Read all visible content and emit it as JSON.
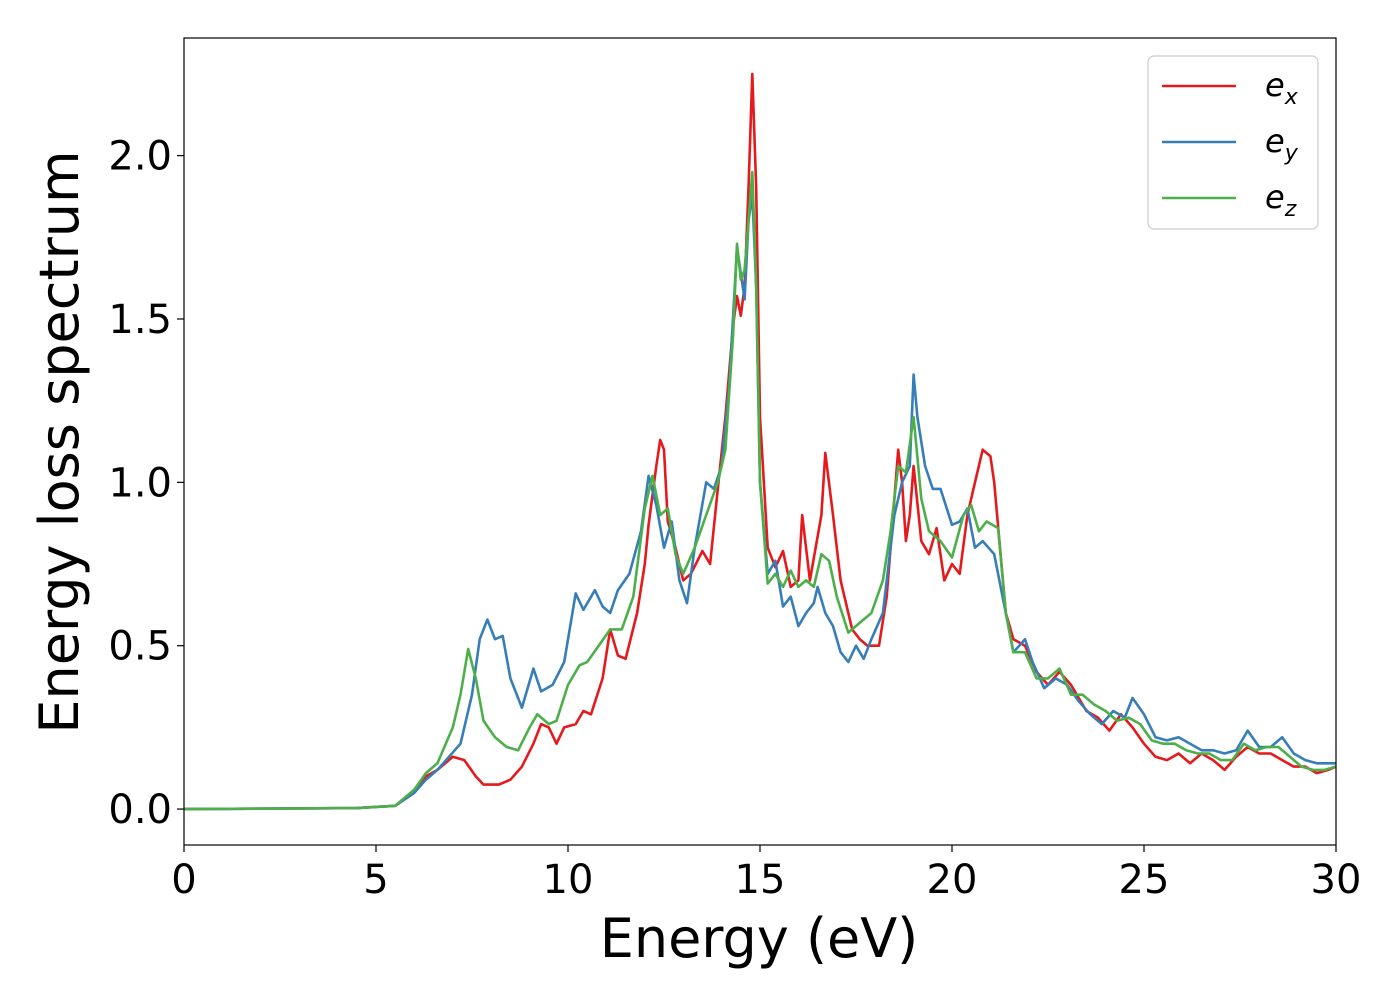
{
  "chart_data": {
    "type": "line",
    "xlabel": "Energy (eV)",
    "ylabel": "Energy loss spectrum",
    "xlim": [
      0,
      30
    ],
    "ylim": [
      -0.11,
      2.36
    ],
    "x_ticks": [
      0,
      5,
      10,
      15,
      20,
      25,
      30
    ],
    "y_ticks": [
      0.0,
      0.5,
      1.0,
      1.5,
      2.0
    ],
    "x_tick_labels": [
      "0",
      "5",
      "10",
      "15",
      "20",
      "25",
      "30"
    ],
    "y_tick_labels": [
      "0.0",
      "0.5",
      "1.0",
      "1.5",
      "2.0"
    ],
    "grid": false,
    "legend_position": "top-right",
    "series": [
      {
        "name": "e",
        "name_sub": "x",
        "color": "#e41a1c",
        "points": [
          [
            0,
            0
          ],
          [
            4.5,
            0.003
          ],
          [
            5.5,
            0.01
          ],
          [
            6.0,
            0.05
          ],
          [
            6.3,
            0.1
          ],
          [
            6.6,
            0.12
          ],
          [
            7.0,
            0.16
          ],
          [
            7.3,
            0.15
          ],
          [
            7.6,
            0.1
          ],
          [
            7.8,
            0.075
          ],
          [
            8.2,
            0.075
          ],
          [
            8.5,
            0.09
          ],
          [
            8.8,
            0.13
          ],
          [
            9.1,
            0.2
          ],
          [
            9.3,
            0.26
          ],
          [
            9.5,
            0.25
          ],
          [
            9.7,
            0.2
          ],
          [
            9.9,
            0.25
          ],
          [
            10.2,
            0.26
          ],
          [
            10.4,
            0.3
          ],
          [
            10.6,
            0.29
          ],
          [
            10.9,
            0.4
          ],
          [
            11.1,
            0.55
          ],
          [
            11.3,
            0.47
          ],
          [
            11.5,
            0.46
          ],
          [
            11.8,
            0.6
          ],
          [
            12.0,
            0.75
          ],
          [
            12.1,
            0.87
          ],
          [
            12.3,
            1.05
          ],
          [
            12.4,
            1.13
          ],
          [
            12.5,
            1.1
          ],
          [
            12.6,
            0.88
          ],
          [
            12.8,
            0.8
          ],
          [
            13.0,
            0.7
          ],
          [
            13.2,
            0.72
          ],
          [
            13.5,
            0.79
          ],
          [
            13.7,
            0.75
          ],
          [
            13.9,
            0.98
          ],
          [
            14.1,
            1.2
          ],
          [
            14.3,
            1.48
          ],
          [
            14.4,
            1.57
          ],
          [
            14.5,
            1.51
          ],
          [
            14.6,
            1.6
          ],
          [
            14.7,
            1.9
          ],
          [
            14.8,
            2.25
          ],
          [
            14.9,
            1.9
          ],
          [
            15.0,
            1.2
          ],
          [
            15.2,
            0.8
          ],
          [
            15.4,
            0.74
          ],
          [
            15.6,
            0.79
          ],
          [
            15.8,
            0.68
          ],
          [
            16.0,
            0.7
          ],
          [
            16.1,
            0.9
          ],
          [
            16.3,
            0.7
          ],
          [
            16.6,
            0.9
          ],
          [
            16.7,
            1.09
          ],
          [
            16.9,
            0.9
          ],
          [
            17.1,
            0.7
          ],
          [
            17.4,
            0.55
          ],
          [
            17.6,
            0.52
          ],
          [
            17.8,
            0.5
          ],
          [
            18.1,
            0.5
          ],
          [
            18.3,
            0.65
          ],
          [
            18.5,
            0.95
          ],
          [
            18.6,
            1.1
          ],
          [
            18.7,
            1.0
          ],
          [
            18.8,
            0.82
          ],
          [
            18.9,
            0.9
          ],
          [
            19.0,
            1.05
          ],
          [
            19.2,
            0.82
          ],
          [
            19.4,
            0.78
          ],
          [
            19.6,
            0.86
          ],
          [
            19.8,
            0.7
          ],
          [
            20.0,
            0.75
          ],
          [
            20.2,
            0.72
          ],
          [
            20.4,
            0.9
          ],
          [
            20.6,
            1.0
          ],
          [
            20.8,
            1.1
          ],
          [
            21.0,
            1.08
          ],
          [
            21.1,
            1.0
          ],
          [
            21.4,
            0.6
          ],
          [
            21.6,
            0.52
          ],
          [
            21.9,
            0.5
          ],
          [
            22.2,
            0.42
          ],
          [
            22.5,
            0.38
          ],
          [
            22.8,
            0.42
          ],
          [
            23.1,
            0.38
          ],
          [
            23.5,
            0.3
          ],
          [
            23.8,
            0.28
          ],
          [
            24.1,
            0.24
          ],
          [
            24.4,
            0.29
          ],
          [
            24.7,
            0.25
          ],
          [
            25.0,
            0.2
          ],
          [
            25.3,
            0.16
          ],
          [
            25.6,
            0.15
          ],
          [
            25.9,
            0.17
          ],
          [
            26.2,
            0.14
          ],
          [
            26.5,
            0.17
          ],
          [
            26.8,
            0.15
          ],
          [
            27.1,
            0.12
          ],
          [
            27.4,
            0.16
          ],
          [
            27.7,
            0.19
          ],
          [
            28.0,
            0.17
          ],
          [
            28.3,
            0.17
          ],
          [
            28.6,
            0.15
          ],
          [
            28.9,
            0.13
          ],
          [
            29.2,
            0.13
          ],
          [
            29.5,
            0.11
          ],
          [
            29.8,
            0.12
          ],
          [
            30.0,
            0.13
          ]
        ]
      },
      {
        "name": "e",
        "name_sub": "y",
        "color": "#377eb8",
        "points": [
          [
            0,
            0
          ],
          [
            4.5,
            0.003
          ],
          [
            5.5,
            0.01
          ],
          [
            6.0,
            0.05
          ],
          [
            6.3,
            0.09
          ],
          [
            6.6,
            0.12
          ],
          [
            6.9,
            0.16
          ],
          [
            7.2,
            0.2
          ],
          [
            7.5,
            0.35
          ],
          [
            7.7,
            0.52
          ],
          [
            7.9,
            0.58
          ],
          [
            8.1,
            0.52
          ],
          [
            8.3,
            0.53
          ],
          [
            8.5,
            0.4
          ],
          [
            8.8,
            0.31
          ],
          [
            9.1,
            0.43
          ],
          [
            9.3,
            0.36
          ],
          [
            9.6,
            0.38
          ],
          [
            9.9,
            0.45
          ],
          [
            10.2,
            0.66
          ],
          [
            10.4,
            0.61
          ],
          [
            10.7,
            0.67
          ],
          [
            10.9,
            0.62
          ],
          [
            11.1,
            0.6
          ],
          [
            11.3,
            0.67
          ],
          [
            11.6,
            0.72
          ],
          [
            11.9,
            0.85
          ],
          [
            12.1,
            1.02
          ],
          [
            12.3,
            0.93
          ],
          [
            12.5,
            0.8
          ],
          [
            12.7,
            0.88
          ],
          [
            12.9,
            0.7
          ],
          [
            13.1,
            0.63
          ],
          [
            13.3,
            0.8
          ],
          [
            13.6,
            1.0
          ],
          [
            13.8,
            0.98
          ],
          [
            14.0,
            1.05
          ],
          [
            14.2,
            1.3
          ],
          [
            14.4,
            1.72
          ],
          [
            14.6,
            1.56
          ],
          [
            14.7,
            1.8
          ],
          [
            14.8,
            1.88
          ],
          [
            14.9,
            1.6
          ],
          [
            15.0,
            1.0
          ],
          [
            15.2,
            0.72
          ],
          [
            15.4,
            0.76
          ],
          [
            15.6,
            0.62
          ],
          [
            15.8,
            0.65
          ],
          [
            16.0,
            0.56
          ],
          [
            16.2,
            0.6
          ],
          [
            16.4,
            0.63
          ],
          [
            16.5,
            0.68
          ],
          [
            16.7,
            0.6
          ],
          [
            16.9,
            0.56
          ],
          [
            17.1,
            0.48
          ],
          [
            17.3,
            0.45
          ],
          [
            17.5,
            0.5
          ],
          [
            17.7,
            0.46
          ],
          [
            17.9,
            0.52
          ],
          [
            18.2,
            0.6
          ],
          [
            18.5,
            0.9
          ],
          [
            18.7,
            1.0
          ],
          [
            18.9,
            1.05
          ],
          [
            19.0,
            1.33
          ],
          [
            19.1,
            1.2
          ],
          [
            19.3,
            1.05
          ],
          [
            19.5,
            0.98
          ],
          [
            19.7,
            0.98
          ],
          [
            20.0,
            0.87
          ],
          [
            20.2,
            0.88
          ],
          [
            20.4,
            0.92
          ],
          [
            20.6,
            0.8
          ],
          [
            20.8,
            0.82
          ],
          [
            21.1,
            0.78
          ],
          [
            21.4,
            0.6
          ],
          [
            21.6,
            0.48
          ],
          [
            21.9,
            0.52
          ],
          [
            22.1,
            0.45
          ],
          [
            22.4,
            0.37
          ],
          [
            22.7,
            0.4
          ],
          [
            23.0,
            0.38
          ],
          [
            23.3,
            0.33
          ],
          [
            23.6,
            0.29
          ],
          [
            23.9,
            0.26
          ],
          [
            24.2,
            0.3
          ],
          [
            24.5,
            0.28
          ],
          [
            24.7,
            0.34
          ],
          [
            25.0,
            0.29
          ],
          [
            25.3,
            0.22
          ],
          [
            25.6,
            0.21
          ],
          [
            25.9,
            0.22
          ],
          [
            26.2,
            0.2
          ],
          [
            26.5,
            0.18
          ],
          [
            26.8,
            0.18
          ],
          [
            27.1,
            0.17
          ],
          [
            27.4,
            0.18
          ],
          [
            27.7,
            0.24
          ],
          [
            28.0,
            0.19
          ],
          [
            28.3,
            0.19
          ],
          [
            28.6,
            0.22
          ],
          [
            28.9,
            0.17
          ],
          [
            29.2,
            0.15
          ],
          [
            29.5,
            0.14
          ],
          [
            29.8,
            0.14
          ],
          [
            30.0,
            0.14
          ]
        ]
      },
      {
        "name": "e",
        "name_sub": "z",
        "color": "#4daf4a",
        "points": [
          [
            0,
            0
          ],
          [
            4.5,
            0.003
          ],
          [
            5.5,
            0.01
          ],
          [
            6.0,
            0.06
          ],
          [
            6.3,
            0.11
          ],
          [
            6.6,
            0.14
          ],
          [
            7.0,
            0.25
          ],
          [
            7.2,
            0.35
          ],
          [
            7.4,
            0.49
          ],
          [
            7.6,
            0.4
          ],
          [
            7.8,
            0.27
          ],
          [
            8.1,
            0.22
          ],
          [
            8.4,
            0.19
          ],
          [
            8.7,
            0.18
          ],
          [
            9.0,
            0.25
          ],
          [
            9.2,
            0.29
          ],
          [
            9.5,
            0.26
          ],
          [
            9.7,
            0.27
          ],
          [
            10.0,
            0.38
          ],
          [
            10.3,
            0.44
          ],
          [
            10.5,
            0.45
          ],
          [
            10.8,
            0.5
          ],
          [
            11.1,
            0.55
          ],
          [
            11.4,
            0.55
          ],
          [
            11.7,
            0.65
          ],
          [
            12.0,
            0.92
          ],
          [
            12.2,
            1.02
          ],
          [
            12.4,
            0.9
          ],
          [
            12.6,
            0.92
          ],
          [
            12.8,
            0.78
          ],
          [
            13.0,
            0.72
          ],
          [
            13.3,
            0.8
          ],
          [
            13.6,
            0.9
          ],
          [
            13.9,
            1.0
          ],
          [
            14.1,
            1.1
          ],
          [
            14.3,
            1.45
          ],
          [
            14.4,
            1.73
          ],
          [
            14.5,
            1.62
          ],
          [
            14.6,
            1.65
          ],
          [
            14.7,
            1.8
          ],
          [
            14.8,
            1.95
          ],
          [
            14.9,
            1.6
          ],
          [
            15.0,
            1.0
          ],
          [
            15.2,
            0.69
          ],
          [
            15.4,
            0.72
          ],
          [
            15.6,
            0.68
          ],
          [
            15.8,
            0.73
          ],
          [
            16.0,
            0.68
          ],
          [
            16.2,
            0.7
          ],
          [
            16.4,
            0.68
          ],
          [
            16.6,
            0.78
          ],
          [
            16.8,
            0.76
          ],
          [
            17.0,
            0.65
          ],
          [
            17.3,
            0.54
          ],
          [
            17.6,
            0.57
          ],
          [
            17.9,
            0.6
          ],
          [
            18.2,
            0.7
          ],
          [
            18.4,
            0.85
          ],
          [
            18.6,
            1.05
          ],
          [
            18.8,
            1.03
          ],
          [
            19.0,
            1.2
          ],
          [
            19.2,
            0.95
          ],
          [
            19.4,
            0.85
          ],
          [
            19.7,
            0.82
          ],
          [
            20.0,
            0.77
          ],
          [
            20.3,
            0.9
          ],
          [
            20.5,
            0.93
          ],
          [
            20.7,
            0.85
          ],
          [
            20.9,
            0.88
          ],
          [
            21.2,
            0.86
          ],
          [
            21.4,
            0.6
          ],
          [
            21.6,
            0.48
          ],
          [
            21.9,
            0.48
          ],
          [
            22.2,
            0.4
          ],
          [
            22.5,
            0.4
          ],
          [
            22.8,
            0.43
          ],
          [
            23.1,
            0.35
          ],
          [
            23.4,
            0.35
          ],
          [
            23.7,
            0.32
          ],
          [
            24.0,
            0.3
          ],
          [
            24.3,
            0.27
          ],
          [
            24.6,
            0.28
          ],
          [
            24.9,
            0.26
          ],
          [
            25.2,
            0.21
          ],
          [
            25.5,
            0.2
          ],
          [
            25.8,
            0.2
          ],
          [
            26.1,
            0.18
          ],
          [
            26.4,
            0.17
          ],
          [
            26.7,
            0.17
          ],
          [
            27.0,
            0.15
          ],
          [
            27.3,
            0.15
          ],
          [
            27.6,
            0.2
          ],
          [
            27.9,
            0.18
          ],
          [
            28.2,
            0.19
          ],
          [
            28.5,
            0.19
          ],
          [
            28.8,
            0.16
          ],
          [
            29.1,
            0.13
          ],
          [
            29.4,
            0.12
          ],
          [
            29.7,
            0.12
          ],
          [
            30.0,
            0.13
          ]
        ]
      }
    ]
  }
}
